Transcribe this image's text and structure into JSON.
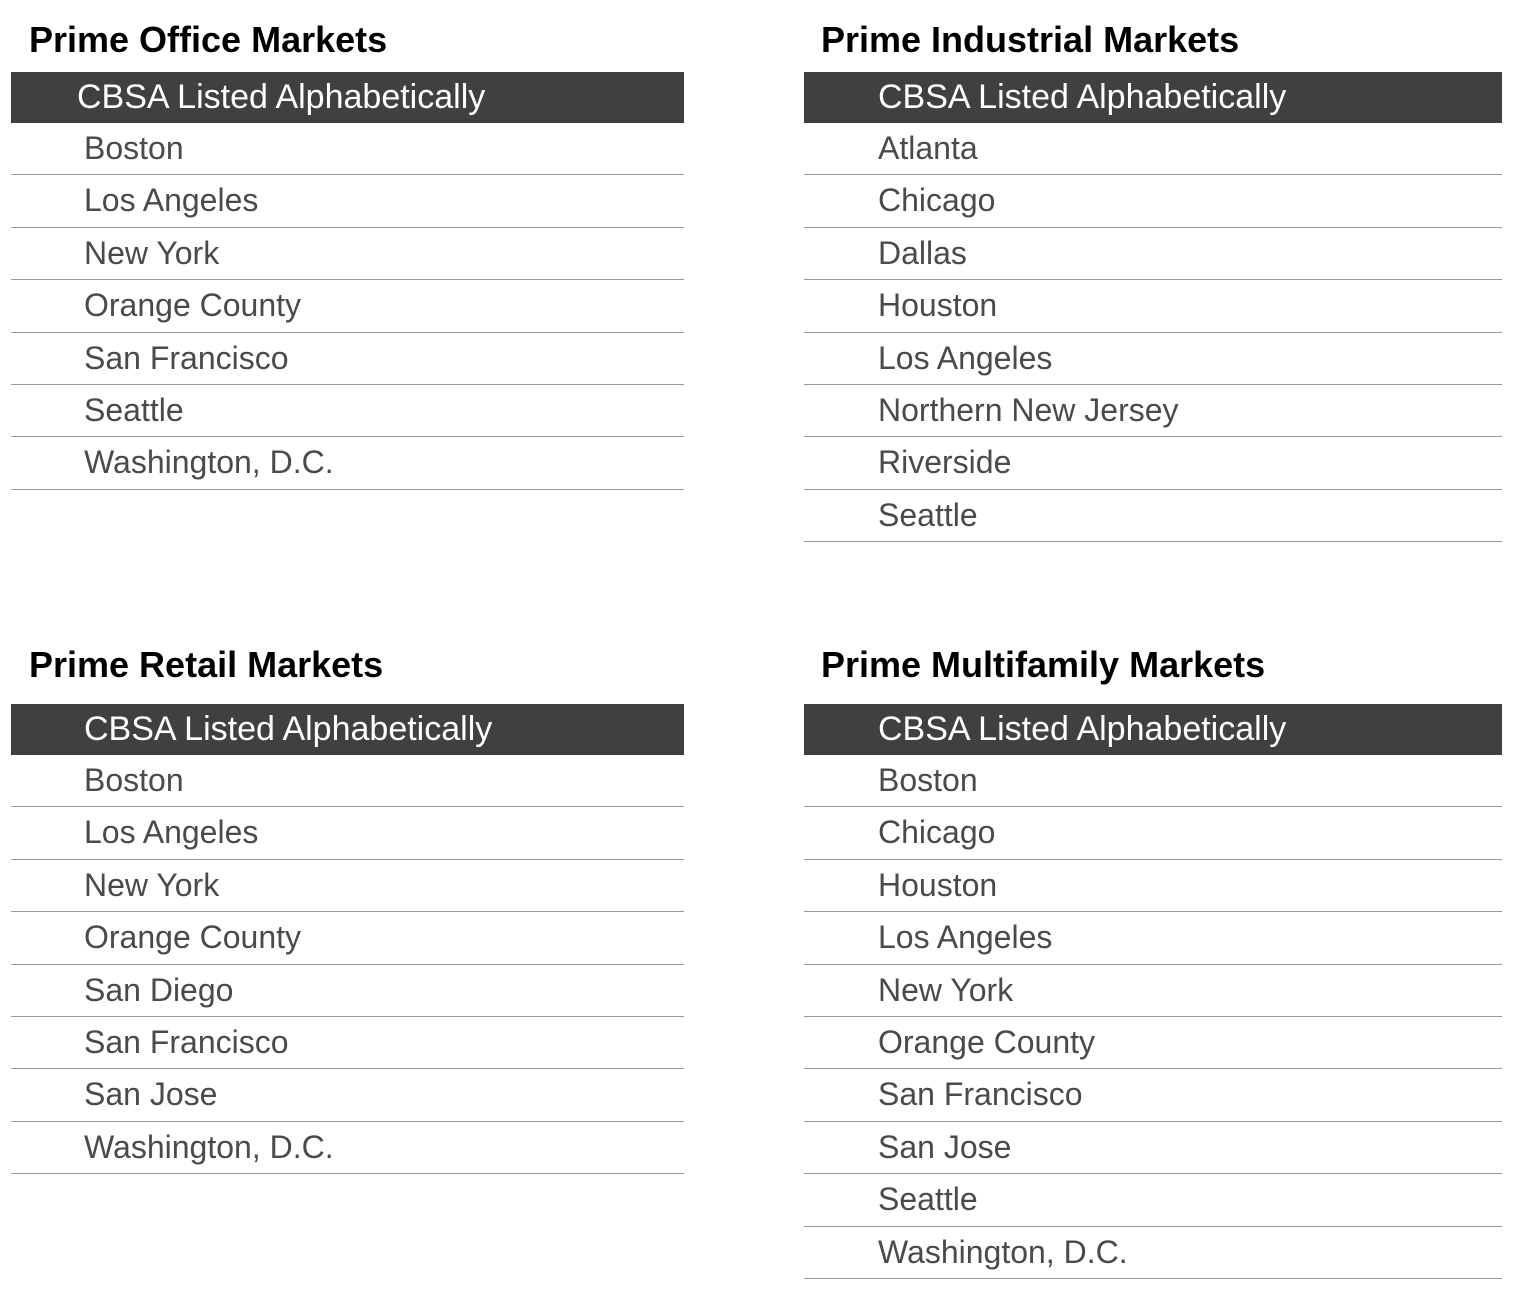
{
  "office": {
    "title": "Prime Office Markets",
    "header": "CBSA Listed Alphabetically",
    "rows": [
      "Boston",
      "Los Angeles",
      "New York",
      "Orange County",
      "San Francisco",
      "Seattle",
      "Washington, D.C."
    ]
  },
  "industrial": {
    "title": "Prime Industrial Markets",
    "header": "CBSA Listed Alphabetically",
    "rows": [
      "Atlanta",
      "Chicago",
      "Dallas",
      "Houston",
      "Los Angeles",
      "Northern New Jersey",
      "Riverside",
      "Seattle"
    ]
  },
  "retail": {
    "title": "Prime Retail Markets",
    "header": "CBSA Listed Alphabetically",
    "rows": [
      "Boston",
      "Los Angeles",
      "New York",
      "Orange County",
      "San Diego",
      "San Francisco",
      "San Jose",
      "Washington, D.C."
    ]
  },
  "multifamily": {
    "title": "Prime Multifamily Markets",
    "header": "CBSA Listed Alphabetically",
    "rows": [
      "Boston",
      "Chicago",
      "Houston",
      "Los Angeles",
      "New York",
      "Orange County",
      "San Francisco",
      "San Jose",
      "Seattle",
      "Washington, D.C."
    ]
  },
  "colors": {
    "header_bg": "#404040",
    "header_text": "#ffffff",
    "row_text": "#4a4a4a",
    "divider": "#9a9a9a"
  }
}
